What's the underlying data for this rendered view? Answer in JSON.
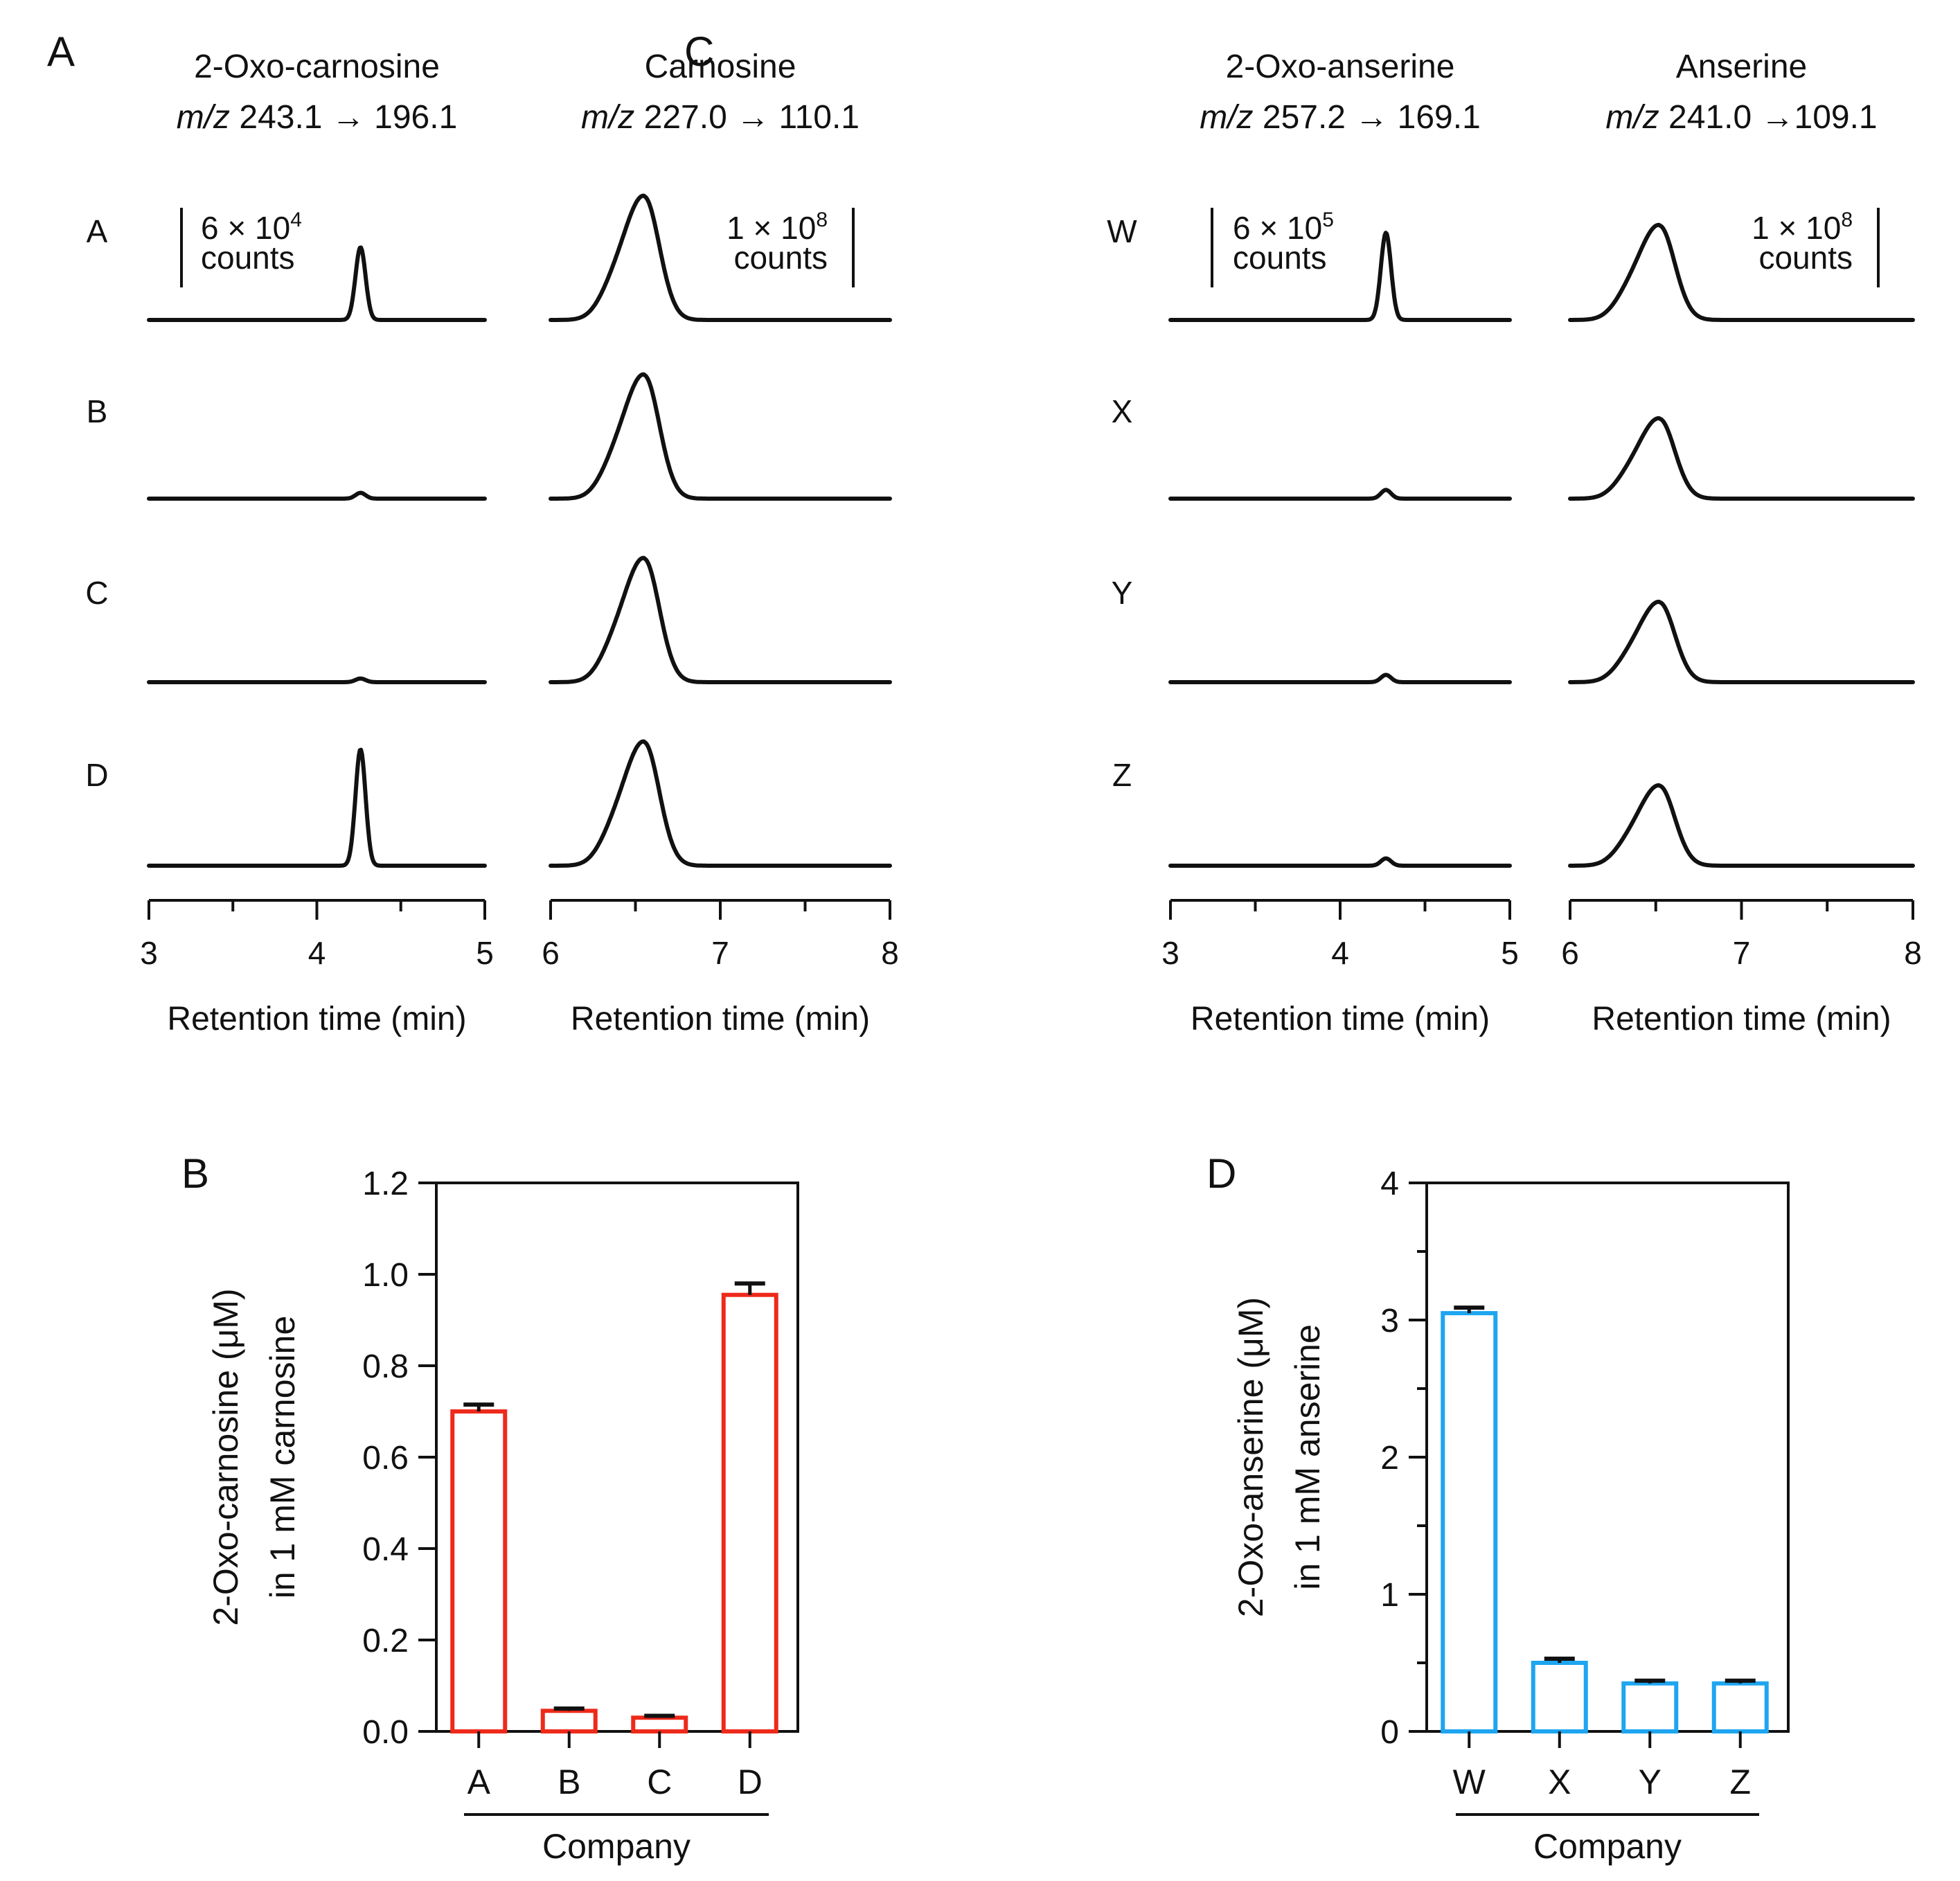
{
  "panel_labels": [
    "A",
    "B",
    "C",
    "D"
  ],
  "chart_data": [
    {
      "type": "line",
      "panel": "A",
      "title": "2-Oxo-carnosine",
      "subtitle_prefix": "m/z",
      "subtitle_value": "243.1 → 196.1",
      "samples": [
        "A",
        "B",
        "C",
        "D"
      ],
      "scale_bar": {
        "mantissa": "6 × 10",
        "exponent": "4",
        "unit": "counts"
      },
      "xlabel": "Retention time (min)",
      "xlim": [
        3,
        5
      ],
      "xticks": [
        "3",
        "4",
        "5"
      ],
      "peak_center": 4.26,
      "peak_heights": [
        0.5,
        0.04,
        0.025,
        0.8
      ]
    },
    {
      "type": "line",
      "panel": "A",
      "title": "Carnosine",
      "subtitle_prefix": "m/z",
      "subtitle_value": "227.0 → 110.1",
      "samples": [
        "A",
        "B",
        "C",
        "D"
      ],
      "scale_bar": {
        "mantissa": "1 × 10",
        "exponent": "8",
        "unit": "counts"
      },
      "xlabel": "Retention time (min)",
      "xlim": [
        6,
        8
      ],
      "xticks": [
        "6",
        "7",
        "8"
      ],
      "peak_center": 6.55,
      "peak_heights": [
        0.85,
        0.85,
        0.85,
        0.85
      ]
    },
    {
      "type": "line",
      "panel": "C",
      "title": "2-Oxo-anserine",
      "subtitle_prefix": "m/z",
      "subtitle_value": "257.2 → 169.1",
      "samples": [
        "W",
        "X",
        "Y",
        "Z"
      ],
      "scale_bar": {
        "mantissa": "6 × 10",
        "exponent": "5",
        "unit": "counts"
      },
      "xlabel": "Retention time (min)",
      "xlim": [
        3,
        5
      ],
      "xticks": [
        "3",
        "4",
        "5"
      ],
      "peak_center": 4.27,
      "peak_heights": [
        0.6,
        0.06,
        0.05,
        0.05
      ]
    },
    {
      "type": "line",
      "panel": "C",
      "title": "Anserine",
      "subtitle_prefix": "m/z",
      "subtitle_value": "241.0 →109.1",
      "samples": [
        "W",
        "X",
        "Y",
        "Z"
      ],
      "scale_bar": {
        "mantissa": "1 × 10",
        "exponent": "8",
        "unit": "counts"
      },
      "xlabel": "Retention time (min)",
      "xlim": [
        6,
        8
      ],
      "xticks": [
        "6",
        "7",
        "8"
      ],
      "peak_center": 6.52,
      "peak_heights": [
        0.65,
        0.55,
        0.55,
        0.55
      ]
    },
    {
      "type": "bar",
      "panel": "B",
      "ylabel_line1": "2-Oxo-carnosine (μM)",
      "ylabel_line2": "in 1 mM carnosine",
      "xlabel": "Company",
      "categories": [
        "A",
        "B",
        "C",
        "D"
      ],
      "values": [
        0.7,
        0.045,
        0.03,
        0.955
      ],
      "errors": [
        0.015,
        0.005,
        0.004,
        0.025
      ],
      "ylim": [
        0,
        1.2
      ],
      "yticks": [
        "0.0",
        "0.2",
        "0.4",
        "0.6",
        "0.8",
        "1.0",
        "1.2"
      ],
      "color": "#ee2a1b"
    },
    {
      "type": "bar",
      "panel": "D",
      "ylabel_line1": "2-Oxo-anserine (μM)",
      "ylabel_line2": "in 1 mM anserine",
      "xlabel": "Company",
      "categories": [
        "W",
        "X",
        "Y",
        "Z"
      ],
      "values": [
        3.05,
        0.5,
        0.35,
        0.35
      ],
      "errors": [
        0.04,
        0.03,
        0.02,
        0.02
      ],
      "ylim": [
        0,
        4
      ],
      "yticks": [
        "0",
        "1",
        "2",
        "3",
        "4"
      ],
      "color": "#1ea5f0"
    }
  ]
}
